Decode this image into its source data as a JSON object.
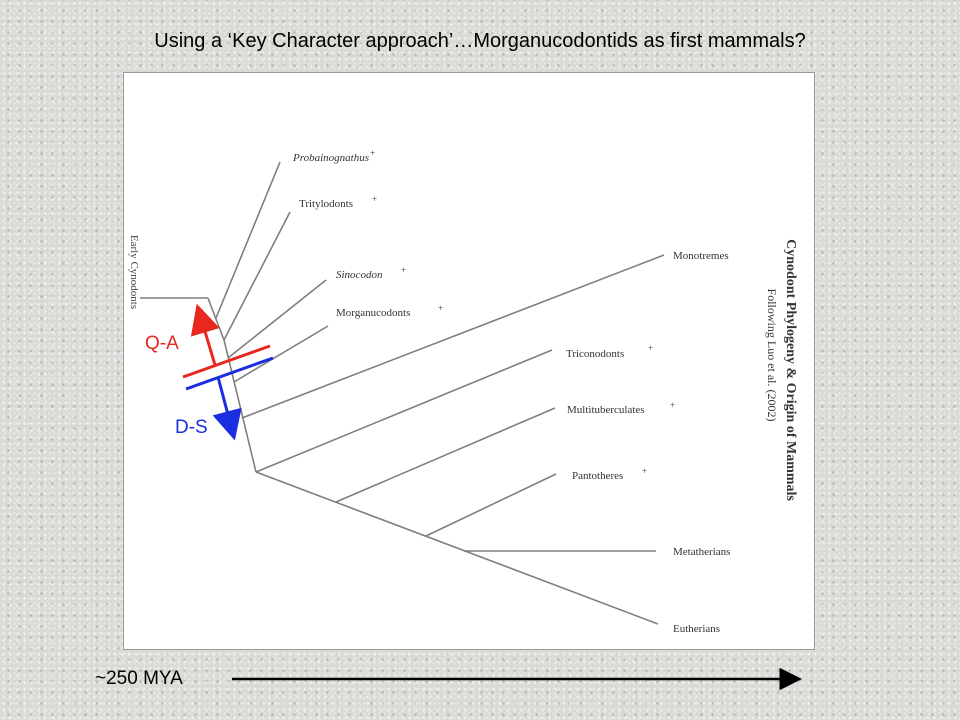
{
  "slide": {
    "title": "Using a ‘Key Character approach’…Morganucodontids  as first mammals?"
  },
  "diagram": {
    "side_title": "Cynodont Phylogeny & Origin of Mammals",
    "side_subtitle": "Following Luo et al. (2002)",
    "early_label": "Early Cynodonts",
    "plus_mark": "+",
    "taxa": {
      "probainognathus": "Probainognathus",
      "tritylodonts": "Tritylodonts",
      "sinocodon": "Sinocodon",
      "morganucodonts": "Morganucodonts",
      "monotremes": "Monotremes",
      "triconodonts": "Triconodonts",
      "multituberculates": "Multituberculates",
      "pantotheres": "Pantotheres",
      "metatherians": "Metatherians",
      "eutherians": "Eutherians"
    }
  },
  "annotations": {
    "qa_label": "Q-A",
    "ds_label": "D-S",
    "qa_color": "#e8281e",
    "ds_color": "#1a2ee0"
  },
  "timeline": {
    "label": "~250 MYA"
  }
}
